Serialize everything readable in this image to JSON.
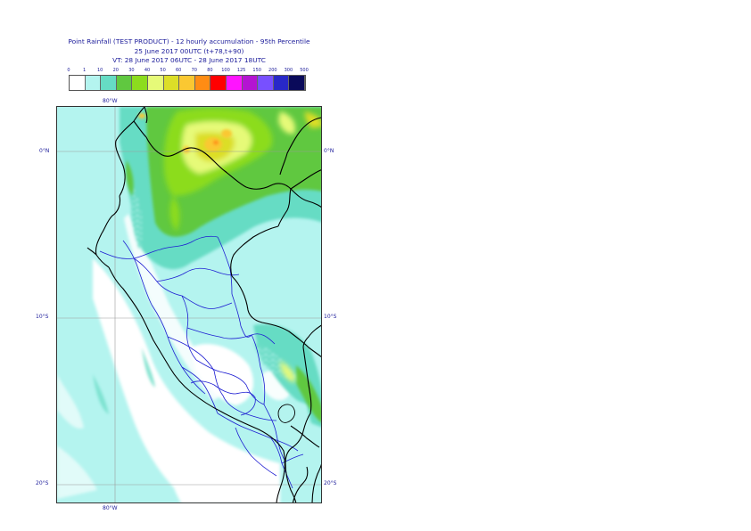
{
  "title": {
    "line1": "Point Rainfall (TEST PRODUCT) - 12 hourly accumulation - 95th Percentile",
    "line2": "25 June 2017 00UTC (t+78,t+90)",
    "line3": "VT: 28 June 2017 06UTC - 28 June 2017 18UTC"
  },
  "legend": {
    "ticks": [
      "0",
      "1",
      "10",
      "20",
      "30",
      "40",
      "50",
      "60",
      "70",
      "80",
      "100",
      "125",
      "150",
      "200",
      "300",
      "500"
    ],
    "colors": [
      "#ffffff",
      "#b4f4ef",
      "#66dcc4",
      "#60c840",
      "#8cdc1e",
      "#e6fa78",
      "#dcde28",
      "#fac832",
      "#ff8c14",
      "#ff0000",
      "#ff14ff",
      "#b414d2",
      "#7850ff",
      "#2828c8",
      "#0a0a5a"
    ]
  },
  "map": {
    "region": "Peru",
    "lat_labels": [
      "0°N",
      "10°S",
      "20°S"
    ],
    "lon_labels": [
      "80°W"
    ],
    "lat_lines_deg": [
      0,
      -10,
      -20
    ],
    "lon_lines_deg": [
      -80
    ],
    "extent": {
      "lon_min": -83.5,
      "lon_max": -67.5,
      "lat_min": -21.2,
      "lat_max": 2.7
    },
    "coastline_color": "#000000",
    "admin_border_color": "#1e1ed2"
  }
}
